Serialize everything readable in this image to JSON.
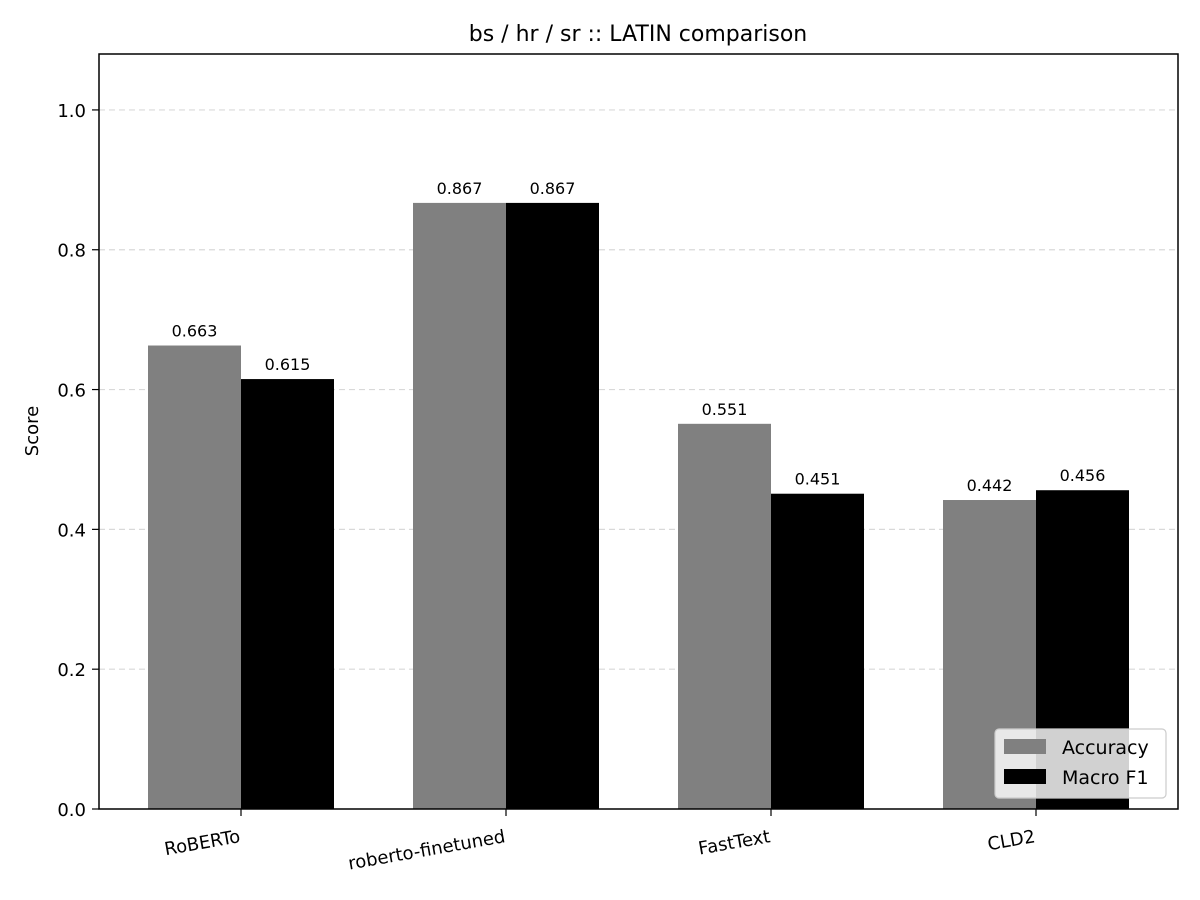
{
  "chart_data": {
    "type": "bar",
    "title": "bs / hr / sr :: LATIN comparison",
    "xlabel": "",
    "ylabel": "Score",
    "categories": [
      "RoBERTo",
      "roberto-finetuned",
      "FastText",
      "CLD2"
    ],
    "series": [
      {
        "name": "Accuracy",
        "color": "#808080",
        "values": [
          0.663,
          0.867,
          0.551,
          0.442
        ]
      },
      {
        "name": "Macro F1",
        "color": "#000000",
        "values": [
          0.615,
          0.867,
          0.451,
          0.456
        ]
      }
    ],
    "data_labels": [
      [
        "0.663",
        "0.867",
        "0.551",
        "0.442"
      ],
      [
        "0.615",
        "0.867",
        "0.451",
        "0.456"
      ]
    ],
    "ylim": [
      0,
      1.08
    ],
    "yticks": [
      "0.0",
      "0.2",
      "0.4",
      "0.6",
      "0.8",
      "1.0"
    ],
    "ytick_values": [
      0,
      0.2,
      0.4,
      0.6,
      0.8,
      1.0
    ],
    "grid": "y-dashed",
    "legend_position": "bottom-right"
  }
}
